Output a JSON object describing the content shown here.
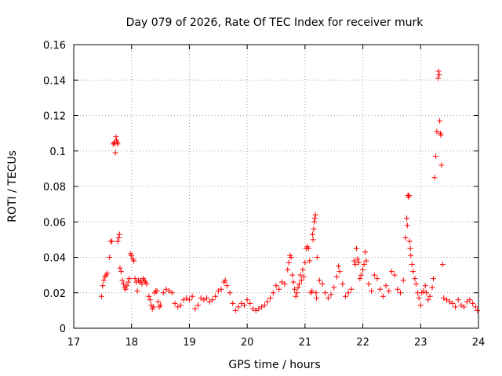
{
  "chart_data": {
    "type": "scatter",
    "title": "Day 079 of 2026, Rate Of TEC Index for receiver murk",
    "xlabel": "GPS time / hours",
    "ylabel": "ROTI / TECUs",
    "xlim": [
      17,
      24
    ],
    "ylim": [
      0,
      0.16
    ],
    "xticks": [
      17,
      18,
      19,
      20,
      21,
      22,
      23,
      24
    ],
    "xtick_labels": [
      "17",
      "18",
      "19",
      "20",
      "21",
      "22",
      "23",
      "24"
    ],
    "yticks": [
      0,
      0.02,
      0.04,
      0.06,
      0.08,
      0.1,
      0.12,
      0.14,
      0.16
    ],
    "ytick_labels": [
      "0",
      "0.02",
      "0.04",
      "0.06",
      "0.08",
      "0.1",
      "0.12",
      "0.14",
      "0.16"
    ],
    "grid": true,
    "marker": "+",
    "marker_color": "#ff0000",
    "series": [
      {
        "name": "ROTI",
        "points": [
          [
            17.48,
            0.018
          ],
          [
            17.5,
            0.024
          ],
          [
            17.52,
            0.027
          ],
          [
            17.54,
            0.029
          ],
          [
            17.56,
            0.03
          ],
          [
            17.58,
            0.031
          ],
          [
            17.62,
            0.04
          ],
          [
            17.64,
            0.049
          ],
          [
            17.66,
            0.049
          ],
          [
            17.68,
            0.104
          ],
          [
            17.7,
            0.105
          ],
          [
            17.71,
            0.104
          ],
          [
            17.72,
            0.099
          ],
          [
            17.73,
            0.108
          ],
          [
            17.74,
            0.106
          ],
          [
            17.75,
            0.105
          ],
          [
            17.76,
            0.104
          ],
          [
            17.76,
            0.049
          ],
          [
            17.78,
            0.051
          ],
          [
            17.79,
            0.053
          ],
          [
            17.8,
            0.034
          ],
          [
            17.82,
            0.032
          ],
          [
            17.84,
            0.027
          ],
          [
            17.86,
            0.025
          ],
          [
            17.88,
            0.023
          ],
          [
            17.9,
            0.022
          ],
          [
            17.92,
            0.024
          ],
          [
            17.94,
            0.026
          ],
          [
            17.96,
            0.028
          ],
          [
            17.98,
            0.042
          ],
          [
            18.0,
            0.041
          ],
          [
            18.02,
            0.039
          ],
          [
            18.04,
            0.038
          ],
          [
            18.06,
            0.028
          ],
          [
            18.08,
            0.026
          ],
          [
            18.1,
            0.021
          ],
          [
            18.12,
            0.027
          ],
          [
            18.14,
            0.026
          ],
          [
            18.16,
            0.027
          ],
          [
            18.18,
            0.025
          ],
          [
            18.2,
            0.028
          ],
          [
            18.22,
            0.027
          ],
          [
            18.24,
            0.026
          ],
          [
            18.26,
            0.025
          ],
          [
            18.3,
            0.018
          ],
          [
            18.32,
            0.016
          ],
          [
            18.34,
            0.013
          ],
          [
            18.36,
            0.011
          ],
          [
            18.38,
            0.012
          ],
          [
            18.4,
            0.02
          ],
          [
            18.42,
            0.021
          ],
          [
            18.44,
            0.021
          ],
          [
            18.46,
            0.015
          ],
          [
            18.48,
            0.012
          ],
          [
            18.5,
            0.013
          ],
          [
            18.55,
            0.02
          ],
          [
            18.6,
            0.022
          ],
          [
            18.65,
            0.021
          ],
          [
            18.7,
            0.02
          ],
          [
            18.75,
            0.014
          ],
          [
            18.8,
            0.012
          ],
          [
            18.85,
            0.013
          ],
          [
            18.9,
            0.016
          ],
          [
            18.95,
            0.017
          ],
          [
            19.0,
            0.016
          ],
          [
            19.05,
            0.018
          ],
          [
            19.1,
            0.011
          ],
          [
            19.15,
            0.013
          ],
          [
            19.2,
            0.017
          ],
          [
            19.25,
            0.016
          ],
          [
            19.3,
            0.017
          ],
          [
            19.35,
            0.015
          ],
          [
            19.4,
            0.016
          ],
          [
            19.45,
            0.018
          ],
          [
            19.5,
            0.021
          ],
          [
            19.55,
            0.022
          ],
          [
            19.6,
            0.026
          ],
          [
            19.62,
            0.027
          ],
          [
            19.65,
            0.024
          ],
          [
            19.7,
            0.02
          ],
          [
            19.75,
            0.014
          ],
          [
            19.8,
            0.01
          ],
          [
            19.85,
            0.012
          ],
          [
            19.9,
            0.014
          ],
          [
            19.95,
            0.013
          ],
          [
            20.0,
            0.016
          ],
          [
            20.05,
            0.014
          ],
          [
            20.1,
            0.011
          ],
          [
            20.15,
            0.01
          ],
          [
            20.2,
            0.011
          ],
          [
            20.25,
            0.012
          ],
          [
            20.3,
            0.013
          ],
          [
            20.35,
            0.015
          ],
          [
            20.4,
            0.017
          ],
          [
            20.45,
            0.02
          ],
          [
            20.5,
            0.024
          ],
          [
            20.55,
            0.022
          ],
          [
            20.6,
            0.026
          ],
          [
            20.65,
            0.025
          ],
          [
            20.7,
            0.033
          ],
          [
            20.72,
            0.037
          ],
          [
            20.74,
            0.041
          ],
          [
            20.76,
            0.04
          ],
          [
            20.78,
            0.03
          ],
          [
            20.8,
            0.026
          ],
          [
            20.82,
            0.022
          ],
          [
            20.84,
            0.018
          ],
          [
            20.86,
            0.02
          ],
          [
            20.88,
            0.023
          ],
          [
            20.9,
            0.025
          ],
          [
            20.92,
            0.03
          ],
          [
            20.94,
            0.027
          ],
          [
            20.96,
            0.033
          ],
          [
            20.98,
            0.029
          ],
          [
            21.0,
            0.037
          ],
          [
            21.02,
            0.045
          ],
          [
            21.04,
            0.046
          ],
          [
            21.06,
            0.045
          ],
          [
            21.08,
            0.038
          ],
          [
            21.1,
            0.02
          ],
          [
            21.12,
            0.021
          ],
          [
            21.13,
            0.053
          ],
          [
            21.14,
            0.05
          ],
          [
            21.15,
            0.056
          ],
          [
            21.16,
            0.06
          ],
          [
            21.17,
            0.062
          ],
          [
            21.18,
            0.064
          ],
          [
            21.19,
            0.02
          ],
          [
            21.2,
            0.017
          ],
          [
            21.21,
            0.04
          ],
          [
            21.25,
            0.027
          ],
          [
            21.3,
            0.025
          ],
          [
            21.35,
            0.02
          ],
          [
            21.4,
            0.017
          ],
          [
            21.45,
            0.019
          ],
          [
            21.5,
            0.023
          ],
          [
            21.55,
            0.029
          ],
          [
            21.58,
            0.035
          ],
          [
            21.6,
            0.032
          ],
          [
            21.65,
            0.025
          ],
          [
            21.7,
            0.018
          ],
          [
            21.75,
            0.02
          ],
          [
            21.8,
            0.022
          ],
          [
            21.85,
            0.038
          ],
          [
            21.87,
            0.036
          ],
          [
            21.89,
            0.045
          ],
          [
            21.91,
            0.039
          ],
          [
            21.93,
            0.037
          ],
          [
            21.95,
            0.028
          ],
          [
            21.97,
            0.03
          ],
          [
            22.0,
            0.033
          ],
          [
            22.02,
            0.036
          ],
          [
            22.04,
            0.043
          ],
          [
            22.06,
            0.038
          ],
          [
            22.1,
            0.025
          ],
          [
            22.15,
            0.021
          ],
          [
            22.2,
            0.03
          ],
          [
            22.25,
            0.028
          ],
          [
            22.3,
            0.022
          ],
          [
            22.35,
            0.018
          ],
          [
            22.4,
            0.024
          ],
          [
            22.45,
            0.021
          ],
          [
            22.5,
            0.032
          ],
          [
            22.55,
            0.03
          ],
          [
            22.6,
            0.022
          ],
          [
            22.65,
            0.02
          ],
          [
            22.7,
            0.027
          ],
          [
            22.74,
            0.051
          ],
          [
            22.76,
            0.062
          ],
          [
            22.77,
            0.058
          ],
          [
            22.78,
            0.075
          ],
          [
            22.79,
            0.074
          ],
          [
            22.8,
            0.075
          ],
          [
            22.81,
            0.049
          ],
          [
            22.82,
            0.045
          ],
          [
            22.83,
            0.041
          ],
          [
            22.85,
            0.036
          ],
          [
            22.87,
            0.032
          ],
          [
            22.9,
            0.028
          ],
          [
            22.92,
            0.025
          ],
          [
            22.95,
            0.02
          ],
          [
            22.97,
            0.017
          ],
          [
            23.0,
            0.013
          ],
          [
            23.02,
            0.02
          ],
          [
            23.05,
            0.021
          ],
          [
            23.08,
            0.024
          ],
          [
            23.1,
            0.02
          ],
          [
            23.13,
            0.016
          ],
          [
            23.16,
            0.018
          ],
          [
            23.2,
            0.023
          ],
          [
            23.22,
            0.028
          ],
          [
            23.24,
            0.085
          ],
          [
            23.26,
            0.097
          ],
          [
            23.28,
            0.111
          ],
          [
            23.3,
            0.141
          ],
          [
            23.31,
            0.145
          ],
          [
            23.32,
            0.143
          ],
          [
            23.33,
            0.117
          ],
          [
            23.34,
            0.11
          ],
          [
            23.35,
            0.109
          ],
          [
            23.36,
            0.092
          ],
          [
            23.38,
            0.036
          ],
          [
            23.4,
            0.017
          ],
          [
            23.45,
            0.016
          ],
          [
            23.5,
            0.015
          ],
          [
            23.55,
            0.014
          ],
          [
            23.6,
            0.012
          ],
          [
            23.65,
            0.016
          ],
          [
            23.7,
            0.013
          ],
          [
            23.75,
            0.012
          ],
          [
            23.8,
            0.015
          ],
          [
            23.85,
            0.016
          ],
          [
            23.9,
            0.014
          ],
          [
            23.95,
            0.012
          ],
          [
            23.98,
            0.01
          ]
        ]
      }
    ]
  }
}
